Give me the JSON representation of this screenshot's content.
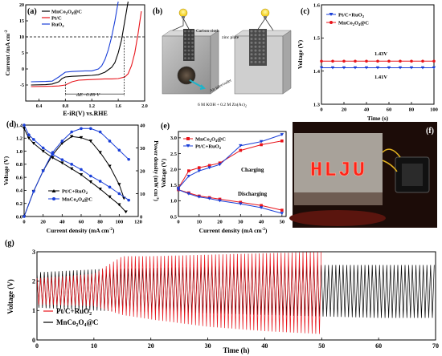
{
  "panels": {
    "a": {
      "letter": "(a)",
      "ylabel": "Current /mA cm",
      "ylabel_sup": "-2",
      "xlabel": "E-iR(V) vs.RHE",
      "annotation": "ΔE=0.89 V"
    },
    "b": {
      "letter": "(b)",
      "labels": {
        "carbon": "Carbon cloth",
        "zinc": "zinc plate",
        "air": "Air inlet/outlet",
        "electrolyte": "6 M KOH + 0.2 M Zn(Ac)",
        "electrolyte_sub": "2"
      }
    },
    "c": {
      "letter": "(c)",
      "ylabel": "Voltage (V)",
      "xlabel": "Time (s)",
      "ann1": "1.43V",
      "ann2": "1.41V"
    },
    "d": {
      "letter": "(d)",
      "ylabel": "Voltage (V)",
      "y2label": "Power density (mW cm",
      "y2label_sup": "-2",
      "y2label_end": ")",
      "xlabel": "Current density (mA cm",
      "xlabel_sup": "-2",
      "xlabel_end": ")"
    },
    "e": {
      "letter": "(e)",
      "ylabel": "Voltage (V)",
      "xlabel": "Current density (mA cm",
      "xlabel_sup": "-2",
      "xlabel_end": ")",
      "ann1": "Charging",
      "ann2": "Discharging"
    },
    "f": {
      "letter": "(f)",
      "led_text": "HLJU"
    },
    "g": {
      "letter": "(g)",
      "ylabel": "Voltage (V)",
      "xlabel": "Time (h)"
    }
  },
  "legend_names": {
    "mnco": "MnCo",
    "mnco_sub1": "2",
    "mnco_mid": "O",
    "mnco_sub2": "4",
    "mnco_end": "@C",
    "ptc": "Pt/C",
    "ruo": "RuO",
    "ruo_sub": "2",
    "ptc_ruo": "Pt/C+RuO",
    "ptc_ruo_sub": "2"
  },
  "colors": {
    "black": "#000000",
    "red": "#e8141b",
    "blue": "#1a3fd8"
  },
  "chart_data": [
    {
      "panel": "a",
      "type": "line",
      "xlabel": "E-iR(V) vs.RHE",
      "ylabel": "Current /mA cm-2",
      "xlim": [
        0.2,
        2.0
      ],
      "ylim": [
        -10,
        20
      ],
      "xticks": [
        0.4,
        0.8,
        1.2,
        1.6,
        2.0
      ],
      "yticks": [
        -5,
        0,
        5,
        10,
        15,
        20
      ],
      "series": [
        {
          "name": "MnCo2O4@C",
          "color": "#000000",
          "x": [
            0.28,
            0.5,
            0.6,
            0.7,
            0.75,
            0.8,
            0.9,
            1.0,
            1.1,
            1.2,
            1.3,
            1.4,
            1.5,
            1.55,
            1.6,
            1.65,
            1.7,
            1.75
          ],
          "y": [
            -5,
            -4.9,
            -4.7,
            -4,
            -3,
            -2.5,
            -2.3,
            -2.2,
            -2.1,
            -2,
            -1.8,
            -1,
            0.5,
            2,
            5,
            9,
            15,
            21
          ]
        },
        {
          "name": "Pt/C",
          "color": "#e8141b",
          "x": [
            0.28,
            0.6,
            0.7,
            0.8,
            0.9,
            1.0,
            1.1,
            1.2,
            1.3,
            1.4,
            1.5,
            1.6,
            1.7,
            1.75,
            1.8,
            1.85,
            1.9,
            1.95
          ],
          "y": [
            -5.5,
            -5.4,
            -5.3,
            -5,
            -4,
            -3.5,
            -3.4,
            -3.3,
            -3.2,
            -3.1,
            -3.1,
            -3,
            -2.5,
            -1.5,
            1,
            5,
            11,
            18
          ]
        },
        {
          "name": "RuO2",
          "color": "#1a3fd8",
          "x": [
            0.28,
            0.5,
            0.6,
            0.7,
            0.8,
            0.9,
            1.0,
            1.1,
            1.2,
            1.3,
            1.35,
            1.4,
            1.45,
            1.5,
            1.55,
            1.6
          ],
          "y": [
            -4,
            -3.9,
            -3.8,
            -2.5,
            -1,
            -0.8,
            -0.7,
            -0.6,
            -0.6,
            0,
            1,
            3,
            6,
            10,
            15,
            21
          ]
        }
      ],
      "annotations": {
        "dashed_level": 10,
        "dE": 0.89,
        "dE_from": 0.8,
        "dE_to": 1.69
      }
    },
    {
      "panel": "c",
      "type": "line",
      "xlabel": "Time (s)",
      "ylabel": "Voltage (V)",
      "xlim": [
        0,
        100
      ],
      "ylim": [
        1.3,
        1.6
      ],
      "xticks": [
        0,
        20,
        40,
        60,
        80,
        100
      ],
      "yticks": [
        1.3,
        1.4,
        1.5,
        1.6
      ],
      "series": [
        {
          "name": "Pt/C+RuO2",
          "color": "#1a3fd8",
          "x": [
            0,
            10,
            20,
            30,
            40,
            50,
            60,
            70,
            80,
            90,
            100
          ],
          "y": [
            1.41,
            1.41,
            1.41,
            1.41,
            1.41,
            1.41,
            1.41,
            1.41,
            1.41,
            1.41,
            1.41
          ]
        },
        {
          "name": "MnCo2O4@C",
          "color": "#e8141b",
          "x": [
            0,
            10,
            20,
            30,
            40,
            50,
            60,
            70,
            80,
            90,
            100
          ],
          "y": [
            1.43,
            1.43,
            1.43,
            1.43,
            1.43,
            1.43,
            1.43,
            1.43,
            1.43,
            1.43,
            1.43
          ]
        }
      ]
    },
    {
      "panel": "d",
      "type": "line",
      "xlabel": "Current density (mA cm-2)",
      "ylabel": "Voltage (V)",
      "y2label": "Power density (mW cm-2)",
      "xlim": [
        0,
        120
      ],
      "ylim": [
        0,
        1.4
      ],
      "y2lim": [
        0,
        40
      ],
      "xticks": [
        0,
        20,
        40,
        60,
        80,
        100,
        120
      ],
      "yticks": [
        0,
        0.2,
        0.4,
        0.6,
        0.8,
        1.0,
        1.2,
        1.4
      ],
      "y2ticks": [
        0,
        10,
        20,
        30,
        40
      ],
      "series": [
        {
          "name": "Pt/C+RuO2",
          "axis": "left",
          "color": "#000000",
          "x": [
            0,
            5,
            10,
            20,
            30,
            40,
            50,
            60,
            70,
            80,
            90,
            100,
            107
          ],
          "y": [
            1.35,
            1.2,
            1.12,
            1.0,
            0.9,
            0.82,
            0.73,
            0.64,
            0.53,
            0.42,
            0.3,
            0.18,
            0.07
          ]
        },
        {
          "name": "Pt/C+RuO2",
          "axis": "right",
          "color": "#000000",
          "x": [
            0,
            10,
            20,
            30,
            40,
            50,
            60,
            70,
            80,
            90,
            100,
            105
          ],
          "y": [
            0,
            11,
            20,
            27,
            32,
            35,
            34.5,
            33,
            28,
            22,
            14,
            8
          ]
        },
        {
          "name": "MnCo2O4@C",
          "axis": "left",
          "color": "#1a3fd8",
          "x": [
            0,
            5,
            10,
            20,
            30,
            40,
            50,
            60,
            70,
            80,
            90,
            100,
            110
          ],
          "y": [
            1.4,
            1.25,
            1.18,
            1.05,
            0.95,
            0.87,
            0.8,
            0.72,
            0.62,
            0.54,
            0.45,
            0.35,
            0.25
          ]
        },
        {
          "name": "MnCo2O4@C",
          "axis": "right",
          "color": "#1a3fd8",
          "x": [
            0,
            10,
            20,
            30,
            40,
            50,
            60,
            70,
            80,
            90,
            100,
            110
          ],
          "y": [
            0,
            11,
            20,
            28,
            33,
            37,
            38.5,
            38.5,
            37,
            33,
            29,
            25
          ]
        }
      ]
    },
    {
      "panel": "e",
      "type": "line",
      "xlabel": "Current density (mA cm-2)",
      "ylabel": "Voltage (V)",
      "xlim": [
        0,
        52
      ],
      "ylim": [
        0.5,
        3.2
      ],
      "xticks": [
        0,
        10,
        20,
        30,
        40,
        50
      ],
      "yticks": [
        0.5,
        1.0,
        1.5,
        2.0,
        2.5,
        3.0
      ],
      "series": [
        {
          "name": "MnCo2O4@C",
          "color": "#e8141b",
          "x": [
            0,
            5,
            10,
            15,
            20,
            30,
            40,
            50
          ],
          "y": [
            1.4,
            1.95,
            2.05,
            2.12,
            2.2,
            2.6,
            2.78,
            2.9
          ]
        },
        {
          "name": "MnCo2O4@C",
          "color": "#e8141b",
          "x": [
            0,
            5,
            10,
            15,
            20,
            30,
            40,
            50
          ],
          "y": [
            1.35,
            1.25,
            1.15,
            1.1,
            1.05,
            0.95,
            0.85,
            0.7
          ]
        },
        {
          "name": "Pt/C+RuO2",
          "color": "#1a3fd8",
          "x": [
            0,
            5,
            10,
            15,
            20,
            30,
            40,
            50
          ],
          "y": [
            1.4,
            1.78,
            1.95,
            2.05,
            2.15,
            2.75,
            2.88,
            3.1
          ]
        },
        {
          "name": "Pt/C+RuO2",
          "color": "#1a3fd8",
          "x": [
            0,
            5,
            10,
            15,
            20,
            30,
            40,
            50
          ],
          "y": [
            1.35,
            1.22,
            1.12,
            1.07,
            1.0,
            0.9,
            0.78,
            0.6
          ]
        }
      ]
    },
    {
      "panel": "g",
      "type": "line",
      "xlabel": "Time (h)",
      "ylabel": "Voltage (V)",
      "xlim": [
        0,
        70
      ],
      "ylim": [
        0,
        3
      ],
      "xticks": [
        0,
        10,
        20,
        30,
        40,
        50,
        60,
        70
      ],
      "yticks": [
        0,
        1,
        2,
        3
      ],
      "series": [
        {
          "name": "Pt/C+RuO2",
          "color": "#e8141b",
          "x": [
            0,
            10,
            15,
            20,
            30,
            40,
            50
          ],
          "y_upper": [
            2.1,
            2.25,
            2.85,
            2.85,
            2.9,
            2.95,
            3.0
          ],
          "y_lower": [
            1.2,
            1.15,
            0.85,
            0.7,
            0.45,
            0.3,
            0.2
          ]
        },
        {
          "name": "MnCo2O4@C",
          "color": "#000000",
          "x": [
            0,
            10,
            20,
            30,
            40,
            50,
            60,
            70
          ],
          "y_upper": [
            2.3,
            2.4,
            2.45,
            2.5,
            2.55,
            2.55,
            2.55,
            2.55
          ],
          "y_lower": [
            1.1,
            1.0,
            0.95,
            0.9,
            0.85,
            0.8,
            0.75,
            0.75
          ]
        }
      ]
    }
  ]
}
